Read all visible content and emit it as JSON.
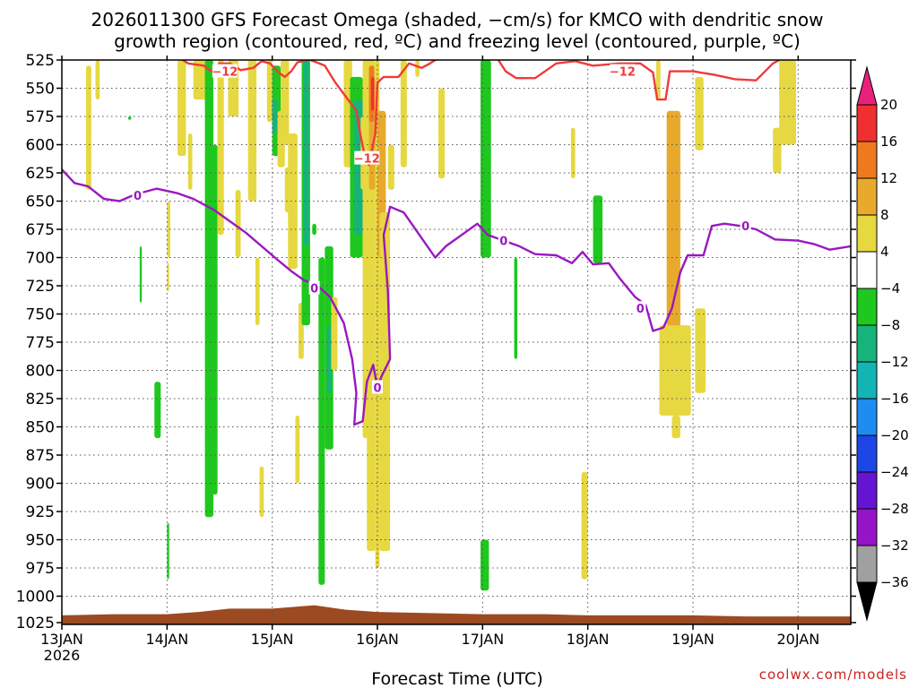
{
  "chart_data": {
    "type": "heatmap",
    "title_line1": "2026011300 GFS Forecast Omega (shaded, −cm/s) for KMCO with dendritic snow",
    "title_line2": "growth region (contoured, red, ºC) and freezing level (contoured, purple, ºC)",
    "xlabel": "Forecast Time (UTC)",
    "credit": "coolwx.com/models",
    "y_ticks": [
      "525",
      "550",
      "575",
      "600",
      "625",
      "650",
      "675",
      "700",
      "725",
      "750",
      "775",
      "800",
      "825",
      "850",
      "875",
      "900",
      "925",
      "950",
      "975",
      "1000",
      "1025"
    ],
    "y_range": [
      525,
      1025
    ],
    "x_range": [
      0,
      7.5
    ],
    "x_ticks": [
      {
        "t": 0,
        "label": "13JAN",
        "sub": "2026"
      },
      {
        "t": 1,
        "label": "14JAN",
        "sub": ""
      },
      {
        "t": 2,
        "label": "15JAN",
        "sub": ""
      },
      {
        "t": 3,
        "label": "16JAN",
        "sub": ""
      },
      {
        "t": 4,
        "label": "17JAN",
        "sub": ""
      },
      {
        "t": 5,
        "label": "18JAN",
        "sub": ""
      },
      {
        "t": 6,
        "label": "19JAN",
        "sub": ""
      },
      {
        "t": 7,
        "label": "20JAN",
        "sub": ""
      }
    ],
    "grid": true,
    "colorbar": {
      "labels": [
        "20",
        "16",
        "12",
        "8",
        "4",
        "−4",
        "−8",
        "−12",
        "−16",
        "−20",
        "−24",
        "−28",
        "−32",
        "−36"
      ],
      "colors": [
        "#e8227a",
        "#f03030",
        "#ee7a1e",
        "#e8aa2c",
        "#e6d840",
        "#ffffff",
        "#1ec81e",
        "#16b47a",
        "#14b4b4",
        "#1e8cf0",
        "#1e46e6",
        "#6414d2",
        "#9614c8",
        "#a0a0a0",
        "#000000"
      ]
    },
    "omega_cells": [
      {
        "t0": 0.23,
        "t1": 0.28,
        "p0": 530,
        "p1": 640,
        "v": 6
      },
      {
        "t0": 0.32,
        "t1": 0.36,
        "p0": 525,
        "p1": 560,
        "v": 6
      },
      {
        "t0": 0.63,
        "t1": 0.66,
        "p0": 575,
        "p1": 578,
        "v": -6
      },
      {
        "t0": 0.74,
        "t1": 0.76,
        "p0": 690,
        "p1": 740,
        "v": -6
      },
      {
        "t0": 1.0,
        "t1": 1.03,
        "p0": 650,
        "p1": 700,
        "v": 6
      },
      {
        "t0": 1.0,
        "t1": 1.02,
        "p0": 705,
        "p1": 730,
        "v": 6
      },
      {
        "t0": 0.88,
        "t1": 0.94,
        "p0": 810,
        "p1": 860,
        "v": -6
      },
      {
        "t0": 1.0,
        "t1": 1.02,
        "p0": 935,
        "p1": 985,
        "v": -6
      },
      {
        "t0": 1.1,
        "t1": 1.18,
        "p0": 525,
        "p1": 610,
        "v": 6
      },
      {
        "t0": 1.2,
        "t1": 1.24,
        "p0": 590,
        "p1": 640,
        "v": 6
      },
      {
        "t0": 1.25,
        "t1": 1.38,
        "p0": 525,
        "p1": 560,
        "v": 6
      },
      {
        "t0": 1.36,
        "t1": 1.44,
        "p0": 525,
        "p1": 930,
        "v": -6
      },
      {
        "t0": 1.43,
        "t1": 1.48,
        "p0": 600,
        "p1": 910,
        "v": -6
      },
      {
        "t0": 1.48,
        "t1": 1.54,
        "p0": 525,
        "p1": 680,
        "v": 6
      },
      {
        "t0": 1.58,
        "t1": 1.68,
        "p0": 525,
        "p1": 575,
        "v": 6
      },
      {
        "t0": 1.65,
        "t1": 1.7,
        "p0": 640,
        "p1": 700,
        "v": 6
      },
      {
        "t0": 1.77,
        "t1": 1.85,
        "p0": 525,
        "p1": 650,
        "v": 6
      },
      {
        "t0": 1.84,
        "t1": 1.88,
        "p0": 700,
        "p1": 760,
        "v": 6
      },
      {
        "t0": 1.88,
        "t1": 1.92,
        "p0": 885,
        "p1": 930,
        "v": 6
      },
      {
        "t0": 1.95,
        "t1": 2.0,
        "p0": 525,
        "p1": 580,
        "v": 6
      },
      {
        "t0": 2.0,
        "t1": 2.08,
        "p0": 530,
        "p1": 610,
        "v": -6
      },
      {
        "t0": 2.0,
        "t1": 2.05,
        "p0": 560,
        "p1": 590,
        "v": -10
      },
      {
        "t0": 2.05,
        "t1": 2.12,
        "p0": 570,
        "p1": 620,
        "v": 6
      },
      {
        "t0": 2.08,
        "t1": 2.16,
        "p0": 525,
        "p1": 600,
        "v": 6
      },
      {
        "t0": 2.12,
        "t1": 2.18,
        "p0": 620,
        "p1": 660,
        "v": 6
      },
      {
        "t0": 2.15,
        "t1": 2.24,
        "p0": 590,
        "p1": 710,
        "v": 6
      },
      {
        "t0": 2.25,
        "t1": 2.3,
        "p0": 740,
        "p1": 790,
        "v": 6
      },
      {
        "t0": 2.22,
        "t1": 2.26,
        "p0": 840,
        "p1": 900,
        "v": 6
      },
      {
        "t0": 2.28,
        "t1": 2.36,
        "p0": 525,
        "p1": 760,
        "v": -6
      },
      {
        "t0": 2.3,
        "t1": 2.35,
        "p0": 525,
        "p1": 690,
        "v": -10
      },
      {
        "t0": 2.38,
        "t1": 2.42,
        "p0": 670,
        "p1": 680,
        "v": -6
      },
      {
        "t0": 2.44,
        "t1": 2.5,
        "p0": 700,
        "p1": 990,
        "v": -6
      },
      {
        "t0": 2.5,
        "t1": 2.58,
        "p0": 690,
        "p1": 870,
        "v": -6
      },
      {
        "t0": 2.52,
        "t1": 2.56,
        "p0": 760,
        "p1": 820,
        "v": -10
      },
      {
        "t0": 2.56,
        "t1": 2.62,
        "p0": 735,
        "p1": 800,
        "v": 6
      },
      {
        "t0": 2.68,
        "t1": 2.76,
        "p0": 525,
        "p1": 620,
        "v": 6
      },
      {
        "t0": 2.74,
        "t1": 2.86,
        "p0": 540,
        "p1": 700,
        "v": -6
      },
      {
        "t0": 2.78,
        "t1": 2.86,
        "p0": 560,
        "p1": 680,
        "v": -10
      },
      {
        "t0": 2.84,
        "t1": 2.9,
        "p0": 575,
        "p1": 640,
        "v": 6
      },
      {
        "t0": 2.86,
        "t1": 2.92,
        "p0": 525,
        "p1": 570,
        "v": 6
      },
      {
        "t0": 2.86,
        "t1": 2.92,
        "p0": 540,
        "p1": 860,
        "v": 6
      },
      {
        "t0": 2.9,
        "t1": 2.98,
        "p0": 525,
        "p1": 960,
        "v": 6
      },
      {
        "t0": 2.92,
        "t1": 2.98,
        "p0": 540,
        "p1": 640,
        "v": 10
      },
      {
        "t0": 2.92,
        "t1": 2.97,
        "p0": 530,
        "p1": 580,
        "v": 14
      },
      {
        "t0": 2.94,
        "t1": 2.97,
        "p0": 540,
        "p1": 570,
        "v": 18
      },
      {
        "t0": 2.98,
        "t1": 3.02,
        "p0": 525,
        "p1": 975,
        "v": 6
      },
      {
        "t0": 3.0,
        "t1": 3.08,
        "p0": 570,
        "p1": 700,
        "v": 10
      },
      {
        "t0": 3.02,
        "t1": 3.12,
        "p0": 660,
        "p1": 960,
        "v": 6
      },
      {
        "t0": 3.1,
        "t1": 3.16,
        "p0": 600,
        "p1": 640,
        "v": 6
      },
      {
        "t0": 3.22,
        "t1": 3.28,
        "p0": 525,
        "p1": 620,
        "v": 6
      },
      {
        "t0": 3.36,
        "t1": 3.4,
        "p0": 525,
        "p1": 540,
        "v": 6
      },
      {
        "t0": 3.58,
        "t1": 3.64,
        "p0": 550,
        "p1": 630,
        "v": 6
      },
      {
        "t0": 3.98,
        "t1": 4.08,
        "p0": 525,
        "p1": 700,
        "v": -6
      },
      {
        "t0": 4.3,
        "t1": 4.33,
        "p0": 700,
        "p1": 790,
        "v": -6
      },
      {
        "t0": 3.98,
        "t1": 4.06,
        "p0": 950,
        "p1": 995,
        "v": -6
      },
      {
        "t0": 4.84,
        "t1": 4.88,
        "p0": 585,
        "p1": 630,
        "v": 6
      },
      {
        "t0": 5.05,
        "t1": 5.14,
        "p0": 645,
        "p1": 705,
        "v": -6
      },
      {
        "t0": 4.94,
        "t1": 5.0,
        "p0": 890,
        "p1": 985,
        "v": 6
      },
      {
        "t0": 5.65,
        "t1": 5.69,
        "p0": 525,
        "p1": 560,
        "v": 6
      },
      {
        "t0": 5.75,
        "t1": 5.88,
        "p0": 570,
        "p1": 825,
        "v": 10
      },
      {
        "t0": 5.68,
        "t1": 5.98,
        "p0": 760,
        "p1": 840,
        "v": 6
      },
      {
        "t0": 5.8,
        "t1": 5.88,
        "p0": 840,
        "p1": 860,
        "v": 6
      },
      {
        "t0": 6.02,
        "t1": 6.1,
        "p0": 540,
        "p1": 605,
        "v": 6
      },
      {
        "t0": 6.02,
        "t1": 6.12,
        "p0": 745,
        "p1": 820,
        "v": 6
      },
      {
        "t0": 6.76,
        "t1": 6.84,
        "p0": 585,
        "p1": 625,
        "v": 6
      },
      {
        "t0": 6.82,
        "t1": 6.98,
        "p0": 525,
        "p1": 600,
        "v": 6
      }
    ],
    "brown_ground": [
      {
        "t": 0.0,
        "p": 1017
      },
      {
        "t": 0.5,
        "p": 1016
      },
      {
        "t": 1.0,
        "p": 1016
      },
      {
        "t": 1.3,
        "p": 1014
      },
      {
        "t": 1.6,
        "p": 1011
      },
      {
        "t": 2.0,
        "p": 1011
      },
      {
        "t": 2.4,
        "p": 1008
      },
      {
        "t": 2.7,
        "p": 1012
      },
      {
        "t": 3.0,
        "p": 1014
      },
      {
        "t": 3.5,
        "p": 1015
      },
      {
        "t": 4.0,
        "p": 1016
      },
      {
        "t": 4.6,
        "p": 1016
      },
      {
        "t": 5.0,
        "p": 1017
      },
      {
        "t": 5.5,
        "p": 1017
      },
      {
        "t": 6.0,
        "p": 1017
      },
      {
        "t": 6.5,
        "p": 1018
      },
      {
        "t": 7.0,
        "p": 1018
      },
      {
        "t": 7.5,
        "p": 1018
      }
    ],
    "contour_red_main": [
      {
        "t": 1.15,
        "p": 525
      },
      {
        "t": 1.2,
        "p": 528
      },
      {
        "t": 1.35,
        "p": 530
      },
      {
        "t": 1.42,
        "p": 535
      },
      {
        "t": 1.5,
        "p": 528
      },
      {
        "t": 1.6,
        "p": 528
      },
      {
        "t": 1.7,
        "p": 534
      },
      {
        "t": 1.82,
        "p": 532
      },
      {
        "t": 1.9,
        "p": 526
      },
      {
        "t": 1.98,
        "p": 528
      },
      {
        "t": 2.06,
        "p": 536
      },
      {
        "t": 2.12,
        "p": 540
      },
      {
        "t": 2.18,
        "p": 535
      },
      {
        "t": 2.24,
        "p": 527
      },
      {
        "t": 2.36,
        "p": 525
      },
      {
        "t": 2.42,
        "p": 527
      },
      {
        "t": 2.5,
        "p": 530
      },
      {
        "t": 2.6,
        "p": 545
      },
      {
        "t": 2.72,
        "p": 560
      },
      {
        "t": 2.8,
        "p": 570
      },
      {
        "t": 2.84,
        "p": 592
      },
      {
        "t": 2.88,
        "p": 610
      },
      {
        "t": 2.92,
        "p": 618
      },
      {
        "t": 2.98,
        "p": 590
      },
      {
        "t": 3.0,
        "p": 545
      },
      {
        "t": 3.06,
        "p": 540
      },
      {
        "t": 3.2,
        "p": 540
      },
      {
        "t": 3.3,
        "p": 528
      },
      {
        "t": 3.42,
        "p": 532
      },
      {
        "t": 3.5,
        "p": 528
      },
      {
        "t": 3.55,
        "p": 525
      }
    ],
    "contour_red_right": [
      {
        "t": 4.15,
        "p": 525
      },
      {
        "t": 4.22,
        "p": 535
      },
      {
        "t": 4.32,
        "p": 541
      },
      {
        "t": 4.5,
        "p": 541
      },
      {
        "t": 4.7,
        "p": 528
      },
      {
        "t": 4.88,
        "p": 526
      },
      {
        "t": 5.05,
        "p": 530
      },
      {
        "t": 5.3,
        "p": 528
      },
      {
        "t": 5.5,
        "p": 528
      },
      {
        "t": 5.62,
        "p": 536
      },
      {
        "t": 5.66,
        "p": 560
      },
      {
        "t": 5.74,
        "p": 560
      },
      {
        "t": 5.78,
        "p": 535
      },
      {
        "t": 6.0,
        "p": 535
      },
      {
        "t": 6.2,
        "p": 538
      },
      {
        "t": 6.4,
        "p": 542
      },
      {
        "t": 6.6,
        "p": 543
      },
      {
        "t": 6.76,
        "p": 528
      },
      {
        "t": 6.82,
        "p": 525
      }
    ],
    "contour_purple": [
      {
        "t": 0.0,
        "p": 622
      },
      {
        "t": 0.12,
        "p": 634
      },
      {
        "t": 0.25,
        "p": 637
      },
      {
        "t": 0.4,
        "p": 648
      },
      {
        "t": 0.55,
        "p": 650
      },
      {
        "t": 0.7,
        "p": 644
      },
      {
        "t": 0.9,
        "p": 639
      },
      {
        "t": 1.1,
        "p": 643
      },
      {
        "t": 1.25,
        "p": 648
      },
      {
        "t": 1.45,
        "p": 658
      },
      {
        "t": 1.6,
        "p": 668
      },
      {
        "t": 1.75,
        "p": 678
      },
      {
        "t": 1.9,
        "p": 690
      },
      {
        "t": 2.05,
        "p": 702
      },
      {
        "t": 2.18,
        "p": 712
      },
      {
        "t": 2.3,
        "p": 720
      },
      {
        "t": 2.42,
        "p": 724
      },
      {
        "t": 2.55,
        "p": 735
      },
      {
        "t": 2.68,
        "p": 758
      },
      {
        "t": 2.76,
        "p": 790
      },
      {
        "t": 2.8,
        "p": 820
      },
      {
        "t": 2.78,
        "p": 848
      },
      {
        "t": 2.86,
        "p": 845
      },
      {
        "t": 2.9,
        "p": 810
      },
      {
        "t": 2.96,
        "p": 795
      },
      {
        "t": 3.0,
        "p": 815
      },
      {
        "t": 3.04,
        "p": 805
      },
      {
        "t": 3.12,
        "p": 790
      },
      {
        "t": 3.1,
        "p": 730
      },
      {
        "t": 3.06,
        "p": 680
      },
      {
        "t": 3.12,
        "p": 655
      },
      {
        "t": 3.25,
        "p": 660
      },
      {
        "t": 3.4,
        "p": 680
      },
      {
        "t": 3.55,
        "p": 700
      },
      {
        "t": 3.65,
        "p": 690
      },
      {
        "t": 3.8,
        "p": 680
      },
      {
        "t": 3.95,
        "p": 670
      },
      {
        "t": 4.05,
        "p": 680
      },
      {
        "t": 4.2,
        "p": 685
      },
      {
        "t": 4.35,
        "p": 690
      },
      {
        "t": 4.5,
        "p": 697
      },
      {
        "t": 4.7,
        "p": 698
      },
      {
        "t": 4.85,
        "p": 705
      },
      {
        "t": 4.95,
        "p": 695
      },
      {
        "t": 5.05,
        "p": 706
      },
      {
        "t": 5.2,
        "p": 705
      },
      {
        "t": 5.3,
        "p": 718
      },
      {
        "t": 5.45,
        "p": 735
      },
      {
        "t": 5.55,
        "p": 742
      },
      {
        "t": 5.62,
        "p": 765
      },
      {
        "t": 5.72,
        "p": 762
      },
      {
        "t": 5.8,
        "p": 745
      },
      {
        "t": 5.88,
        "p": 713
      },
      {
        "t": 5.95,
        "p": 698
      },
      {
        "t": 6.1,
        "p": 698
      },
      {
        "t": 6.18,
        "p": 672
      },
      {
        "t": 6.3,
        "p": 670
      },
      {
        "t": 6.45,
        "p": 672
      },
      {
        "t": 6.6,
        "p": 675
      },
      {
        "t": 6.78,
        "p": 684
      },
      {
        "t": 7.0,
        "p": 685
      },
      {
        "t": 7.15,
        "p": 688
      },
      {
        "t": 7.3,
        "p": 693
      },
      {
        "t": 7.5,
        "p": 690
      }
    ],
    "contour_labels": [
      {
        "t": 0.72,
        "p": 645,
        "text": "0",
        "color": "#9a18c0"
      },
      {
        "t": 2.4,
        "p": 727,
        "text": "0",
        "color": "#9a18c0"
      },
      {
        "t": 3.0,
        "p": 815,
        "text": "0",
        "color": "#9a18c0"
      },
      {
        "t": 4.2,
        "p": 685,
        "text": "0",
        "color": "#9a18c0"
      },
      {
        "t": 5.5,
        "p": 745,
        "text": "0",
        "color": "#9a18c0"
      },
      {
        "t": 6.5,
        "p": 672,
        "text": "0",
        "color": "#9a18c0"
      },
      {
        "t": 1.55,
        "p": 535,
        "text": "−12",
        "color": "#f03a3a"
      },
      {
        "t": 2.9,
        "p": 612,
        "text": "−12",
        "color": "#f03a3a"
      },
      {
        "t": 5.33,
        "p": 535,
        "text": "−12",
        "color": "#f03a3a"
      }
    ]
  }
}
